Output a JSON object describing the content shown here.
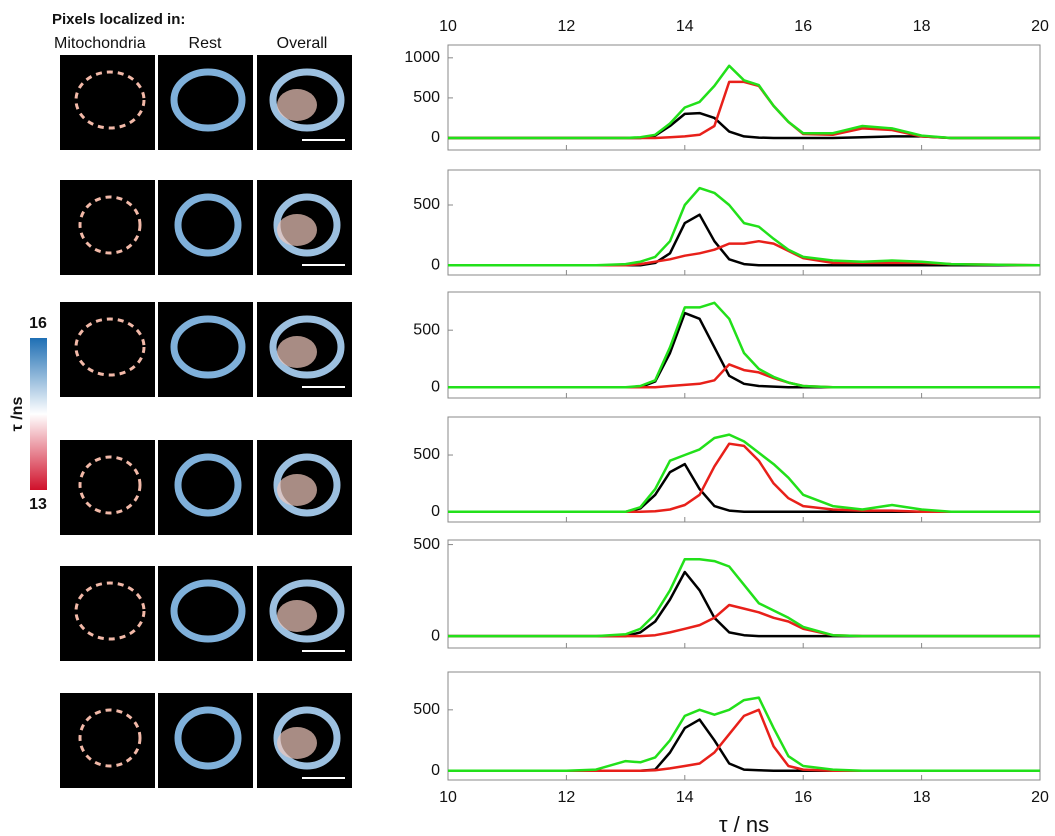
{
  "labels": {
    "heading": "Pixels localized in:",
    "columns": [
      "Mitochondria",
      "Rest",
      "Overall"
    ]
  },
  "colorbar": {
    "max": 16,
    "min": 13,
    "label": "τ /ns"
  },
  "chart_data": [
    {
      "type": "line",
      "xlim": [
        10,
        20
      ],
      "xticks": [
        10,
        12,
        14,
        16,
        18,
        20
      ],
      "ylim": [
        -150,
        1160
      ],
      "yticks": [
        0,
        500,
        1000
      ],
      "x": [
        10,
        12,
        12.5,
        13,
        13.25,
        13.5,
        13.75,
        14,
        14.25,
        14.5,
        14.75,
        15,
        15.25,
        15.5,
        15.75,
        16,
        16.5,
        17,
        17.5,
        18,
        18.5,
        20
      ],
      "series": [
        {
          "color": "#000000",
          "values": [
            0,
            0,
            0,
            0,
            0,
            30,
            150,
            300,
            310,
            250,
            80,
            20,
            5,
            0,
            0,
            0,
            0,
            10,
            20,
            20,
            0,
            0
          ]
        },
        {
          "color": "#e8201a",
          "values": [
            0,
            0,
            0,
            0,
            0,
            0,
            10,
            20,
            40,
            150,
            700,
            700,
            650,
            400,
            200,
            50,
            40,
            120,
            100,
            20,
            0,
            0
          ]
        },
        {
          "color": "#22e01a",
          "values": [
            0,
            0,
            0,
            0,
            10,
            40,
            180,
            380,
            450,
            650,
            900,
            720,
            660,
            400,
            200,
            60,
            60,
            150,
            120,
            30,
            0,
            0
          ]
        }
      ]
    },
    {
      "type": "line",
      "xlim": [
        10,
        20
      ],
      "xticks": [
        10,
        12,
        14,
        16,
        18,
        20
      ],
      "ylim": [
        -80,
        790
      ],
      "yticks": [
        0,
        500
      ],
      "x": [
        10,
        12,
        12.5,
        13,
        13.25,
        13.5,
        13.75,
        14,
        14.25,
        14.5,
        14.75,
        15,
        15.25,
        15.5,
        15.75,
        16,
        16.5,
        17,
        17.5,
        18,
        18.5,
        20
      ],
      "series": [
        {
          "color": "#000000",
          "values": [
            0,
            0,
            0,
            0,
            0,
            20,
            100,
            350,
            420,
            200,
            50,
            10,
            0,
            0,
            0,
            0,
            0,
            0,
            0,
            0,
            0,
            0
          ]
        },
        {
          "color": "#e8201a",
          "values": [
            0,
            0,
            0,
            0,
            10,
            30,
            50,
            80,
            100,
            130,
            180,
            180,
            200,
            180,
            120,
            60,
            20,
            20,
            20,
            20,
            10,
            0
          ]
        },
        {
          "color": "#22e01a",
          "values": [
            0,
            0,
            0,
            10,
            30,
            70,
            200,
            500,
            640,
            600,
            500,
            350,
            320,
            220,
            130,
            70,
            40,
            30,
            40,
            30,
            10,
            0
          ]
        }
      ]
    },
    {
      "type": "line",
      "xlim": [
        10,
        20
      ],
      "xticks": [
        10,
        12,
        14,
        16,
        18,
        20
      ],
      "ylim": [
        -95,
        835
      ],
      "yticks": [
        0,
        500
      ],
      "x": [
        10,
        12,
        12.5,
        13,
        13.25,
        13.5,
        13.75,
        14,
        14.25,
        14.5,
        14.75,
        15,
        15.25,
        15.5,
        15.75,
        16,
        16.5,
        17,
        17.5,
        18,
        18.5,
        20
      ],
      "series": [
        {
          "color": "#000000",
          "values": [
            0,
            0,
            0,
            0,
            0,
            50,
            300,
            650,
            600,
            350,
            100,
            30,
            10,
            5,
            0,
            0,
            0,
            0,
            0,
            0,
            0,
            0
          ]
        },
        {
          "color": "#e8201a",
          "values": [
            0,
            0,
            0,
            0,
            0,
            0,
            10,
            20,
            30,
            60,
            200,
            150,
            130,
            80,
            40,
            10,
            0,
            0,
            0,
            0,
            0,
            0
          ]
        },
        {
          "color": "#22e01a",
          "values": [
            0,
            0,
            0,
            0,
            10,
            60,
            350,
            700,
            700,
            740,
            600,
            300,
            160,
            90,
            40,
            10,
            0,
            0,
            0,
            0,
            0,
            0
          ]
        }
      ]
    },
    {
      "type": "line",
      "xlim": [
        10,
        20
      ],
      "xticks": [
        10,
        12,
        14,
        16,
        18,
        20
      ],
      "ylim": [
        -90,
        835
      ],
      "yticks": [
        0,
        500
      ],
      "x": [
        10,
        12,
        12.5,
        13,
        13.25,
        13.5,
        13.75,
        14,
        14.25,
        14.5,
        14.75,
        15,
        15.25,
        15.5,
        15.75,
        16,
        16.5,
        17,
        17.5,
        18,
        18.5,
        20
      ],
      "series": [
        {
          "color": "#000000",
          "values": [
            0,
            0,
            0,
            0,
            30,
            150,
            350,
            420,
            200,
            50,
            10,
            0,
            0,
            0,
            0,
            0,
            0,
            0,
            0,
            0,
            0,
            0
          ]
        },
        {
          "color": "#e8201a",
          "values": [
            0,
            0,
            0,
            0,
            0,
            5,
            20,
            60,
            150,
            400,
            600,
            580,
            450,
            250,
            120,
            50,
            20,
            10,
            10,
            0,
            0,
            0
          ]
        },
        {
          "color": "#22e01a",
          "values": [
            0,
            0,
            0,
            0,
            40,
            200,
            450,
            500,
            550,
            650,
            680,
            620,
            520,
            420,
            300,
            150,
            50,
            20,
            60,
            20,
            0,
            0
          ]
        }
      ]
    },
    {
      "type": "line",
      "xlim": [
        10,
        20
      ],
      "xticks": [
        10,
        12,
        14,
        16,
        18,
        20
      ],
      "ylim": [
        -65,
        525
      ],
      "yticks": [
        0,
        500
      ],
      "x": [
        10,
        12,
        12.5,
        13,
        13.25,
        13.5,
        13.75,
        14,
        14.25,
        14.5,
        14.75,
        15,
        15.25,
        15.5,
        15.75,
        16,
        16.5,
        17,
        17.5,
        18,
        18.5,
        20
      ],
      "series": [
        {
          "color": "#000000",
          "values": [
            0,
            0,
            0,
            0,
            20,
            80,
            200,
            350,
            250,
            100,
            20,
            5,
            0,
            0,
            0,
            0,
            0,
            0,
            0,
            0,
            0,
            0
          ]
        },
        {
          "color": "#e8201a",
          "values": [
            0,
            0,
            0,
            0,
            0,
            5,
            20,
            40,
            60,
            100,
            170,
            150,
            130,
            100,
            80,
            40,
            5,
            0,
            0,
            0,
            0,
            0
          ]
        },
        {
          "color": "#22e01a",
          "values": [
            0,
            0,
            0,
            10,
            40,
            120,
            250,
            420,
            420,
            410,
            380,
            280,
            180,
            140,
            100,
            50,
            5,
            0,
            0,
            0,
            0,
            0
          ]
        }
      ]
    },
    {
      "type": "line",
      "xlim": [
        10,
        20
      ],
      "xticks": [
        10,
        12,
        14,
        16,
        18,
        20
      ],
      "ylim": [
        -75,
        810
      ],
      "yticks": [
        0,
        500
      ],
      "xlabel": "τ / ns",
      "x": [
        10,
        12,
        12.5,
        13,
        13.25,
        13.5,
        13.75,
        14,
        14.25,
        14.5,
        14.75,
        15,
        15.25,
        15.5,
        15.75,
        16,
        16.5,
        17,
        17.5,
        18,
        18.5,
        20
      ],
      "series": [
        {
          "color": "#000000",
          "values": [
            0,
            0,
            0,
            0,
            0,
            10,
            150,
            350,
            420,
            250,
            60,
            10,
            5,
            0,
            0,
            0,
            0,
            0,
            0,
            0,
            0,
            0
          ]
        },
        {
          "color": "#e8201a",
          "values": [
            0,
            0,
            0,
            0,
            0,
            5,
            20,
            40,
            60,
            150,
            300,
            450,
            500,
            200,
            40,
            10,
            0,
            0,
            0,
            0,
            0,
            0
          ]
        },
        {
          "color": "#22e01a",
          "values": [
            0,
            0,
            10,
            80,
            70,
            110,
            250,
            450,
            500,
            460,
            500,
            580,
            600,
            350,
            120,
            40,
            10,
            0,
            0,
            0,
            0,
            0
          ]
        }
      ]
    }
  ]
}
